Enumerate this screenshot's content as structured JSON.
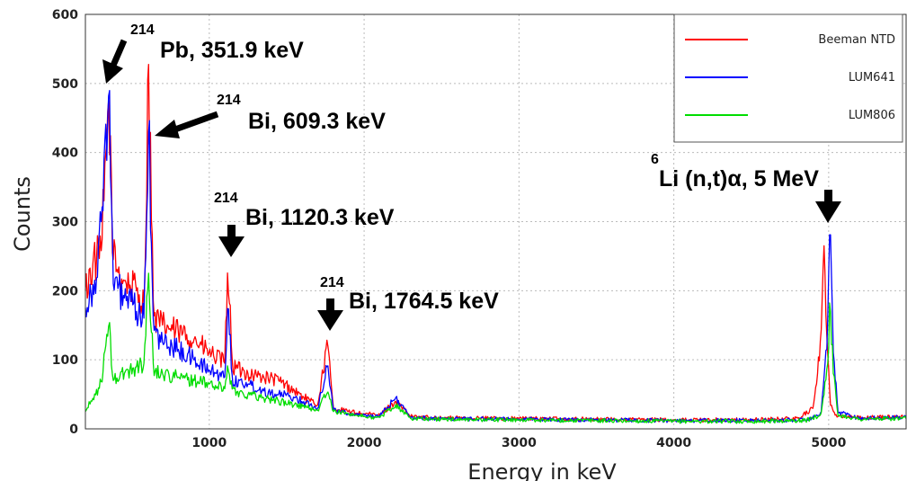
{
  "chart_data": {
    "type": "line",
    "title": "",
    "xlabel": "Energy in keV",
    "ylabel": "Counts",
    "xlim": [
      200,
      5500
    ],
    "ylim": [
      0,
      600
    ],
    "grid": true,
    "legend_position": "top-right",
    "x_ticks": [
      "1000",
      "2000",
      "3000",
      "4000",
      "5000"
    ],
    "y_ticks": [
      "0",
      "100",
      "200",
      "300",
      "400",
      "500",
      "600"
    ],
    "series": [
      {
        "name": "Beeman NTD",
        "color": "#ff0000",
        "points": [
          [
            200,
            200
          ],
          [
            250,
            240
          ],
          [
            300,
            250
          ],
          [
            320,
            330
          ],
          [
            351,
            480
          ],
          [
            380,
            245
          ],
          [
            450,
            215
          ],
          [
            530,
            200
          ],
          [
            580,
            180
          ],
          [
            609,
            540
          ],
          [
            640,
            160
          ],
          [
            700,
            150
          ],
          [
            800,
            140
          ],
          [
            900,
            130
          ],
          [
            1000,
            110
          ],
          [
            1100,
            95
          ],
          [
            1120,
            240
          ],
          [
            1150,
            90
          ],
          [
            1250,
            80
          ],
          [
            1350,
            75
          ],
          [
            1450,
            70
          ],
          [
            1550,
            55
          ],
          [
            1650,
            40
          ],
          [
            1700,
            35
          ],
          [
            1764,
            125
          ],
          [
            1800,
            30
          ],
          [
            1900,
            25
          ],
          [
            2000,
            22
          ],
          [
            2100,
            20
          ],
          [
            2204,
            40
          ],
          [
            2300,
            18
          ],
          [
            2500,
            16
          ],
          [
            3000,
            15
          ],
          [
            3500,
            14
          ],
          [
            4000,
            13
          ],
          [
            4500,
            13
          ],
          [
            4800,
            15
          ],
          [
            4900,
            30
          ],
          [
            4950,
            130
          ],
          [
            4970,
            265
          ],
          [
            4990,
            120
          ],
          [
            5010,
            35
          ],
          [
            5050,
            20
          ],
          [
            5200,
            16
          ],
          [
            5500,
            18
          ]
        ]
      },
      {
        "name": "LUM641",
        "color": "#0000ff",
        "points": [
          [
            200,
            175
          ],
          [
            250,
            210
          ],
          [
            280,
            220
          ],
          [
            320,
            390
          ],
          [
            351,
            485
          ],
          [
            380,
            210
          ],
          [
            450,
            190
          ],
          [
            530,
            170
          ],
          [
            580,
            160
          ],
          [
            609,
            440
          ],
          [
            640,
            140
          ],
          [
            700,
            125
          ],
          [
            800,
            115
          ],
          [
            900,
            100
          ],
          [
            1000,
            85
          ],
          [
            1100,
            75
          ],
          [
            1120,
            185
          ],
          [
            1150,
            70
          ],
          [
            1250,
            65
          ],
          [
            1350,
            55
          ],
          [
            1450,
            50
          ],
          [
            1550,
            45
          ],
          [
            1650,
            35
          ],
          [
            1700,
            30
          ],
          [
            1764,
            95
          ],
          [
            1800,
            28
          ],
          [
            1900,
            22
          ],
          [
            2000,
            20
          ],
          [
            2100,
            18
          ],
          [
            2204,
            45
          ],
          [
            2300,
            16
          ],
          [
            2500,
            15
          ],
          [
            3000,
            14
          ],
          [
            3500,
            13
          ],
          [
            4000,
            12
          ],
          [
            4500,
            12
          ],
          [
            4850,
            13
          ],
          [
            4950,
            20
          ],
          [
            4990,
            120
          ],
          [
            5010,
            300
          ],
          [
            5030,
            110
          ],
          [
            5060,
            25
          ],
          [
            5200,
            15
          ],
          [
            5500,
            17
          ]
        ]
      },
      {
        "name": "LUM806",
        "color": "#00dd00",
        "points": [
          [
            200,
            25
          ],
          [
            250,
            45
          ],
          [
            300,
            65
          ],
          [
            351,
            150
          ],
          [
            380,
            70
          ],
          [
            450,
            80
          ],
          [
            530,
            90
          ],
          [
            580,
            95
          ],
          [
            609,
            230
          ],
          [
            640,
            85
          ],
          [
            700,
            80
          ],
          [
            800,
            75
          ],
          [
            900,
            70
          ],
          [
            1000,
            65
          ],
          [
            1100,
            58
          ],
          [
            1120,
            95
          ],
          [
            1150,
            55
          ],
          [
            1250,
            50
          ],
          [
            1350,
            45
          ],
          [
            1450,
            40
          ],
          [
            1550,
            35
          ],
          [
            1650,
            30
          ],
          [
            1700,
            27
          ],
          [
            1764,
            55
          ],
          [
            1800,
            25
          ],
          [
            1900,
            22
          ],
          [
            2000,
            18
          ],
          [
            2100,
            16
          ],
          [
            2204,
            35
          ],
          [
            2300,
            15
          ],
          [
            2500,
            14
          ],
          [
            3000,
            13
          ],
          [
            3500,
            12
          ],
          [
            4000,
            11
          ],
          [
            4500,
            11
          ],
          [
            4850,
            12
          ],
          [
            4950,
            20
          ],
          [
            4990,
            90
          ],
          [
            5010,
            180
          ],
          [
            5030,
            80
          ],
          [
            5060,
            20
          ],
          [
            5200,
            14
          ],
          [
            5500,
            15
          ]
        ]
      }
    ],
    "annotations": [
      {
        "sup": "214",
        "text": "Pb, 351.9 keV"
      },
      {
        "sup": "214",
        "text": "Bi, 609.3 keV"
      },
      {
        "sup": "214",
        "text": "Bi, 1120.3 keV"
      },
      {
        "sup": "214",
        "text": "Bi, 1764.5 keV"
      },
      {
        "sup": "6",
        "text": "Li (n,t)α, 5 MeV"
      }
    ]
  }
}
